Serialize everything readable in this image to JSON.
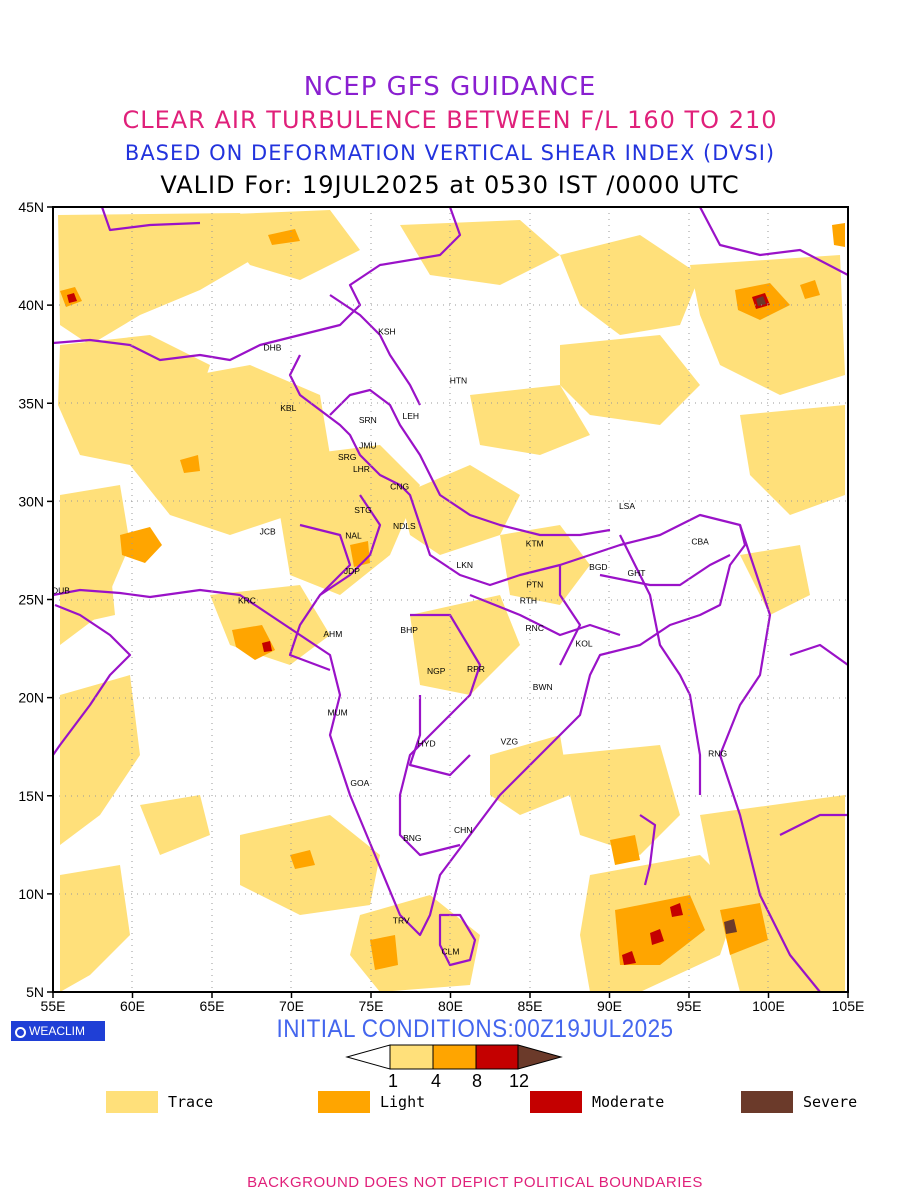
{
  "header": {
    "title": "NCEP GFS GUIDANCE",
    "subtitle": "CLEAR AIR TURBULENCE BETWEEN F/L 160 TO 210",
    "index_line": "BASED ON DEFORMATION VERTICAL SHEAR INDEX (DVSI)",
    "valid_line": "VALID For: 19JUL2025 at 0530 IST /0000 UTC"
  },
  "map": {
    "lat_labels": [
      "45N",
      "40N",
      "35N",
      "30N",
      "25N",
      "20N",
      "15N",
      "10N",
      "5N"
    ],
    "lon_labels": [
      "55E",
      "60E",
      "65E",
      "70E",
      "75E",
      "80E",
      "85E",
      "90E",
      "95E",
      "100E",
      "105E"
    ],
    "lat_range": [
      5,
      45
    ],
    "lon_range": [
      55,
      105
    ],
    "stations": [
      {
        "code": "KSH",
        "lon": 76.0,
        "lat": 38.5
      },
      {
        "code": "HTN",
        "lon": 80.5,
        "lat": 36.0
      },
      {
        "code": "DHB",
        "lon": 68.8,
        "lat": 37.7
      },
      {
        "code": "KBL",
        "lon": 69.8,
        "lat": 34.6
      },
      {
        "code": "SRN",
        "lon": 74.8,
        "lat": 34.0
      },
      {
        "code": "LEH",
        "lon": 77.5,
        "lat": 34.2
      },
      {
        "code": "JMU",
        "lon": 74.8,
        "lat": 32.7
      },
      {
        "code": "SRG",
        "lon": 73.5,
        "lat": 32.1
      },
      {
        "code": "LHR",
        "lon": 74.4,
        "lat": 31.5
      },
      {
        "code": "CNG",
        "lon": 76.8,
        "lat": 30.6
      },
      {
        "code": "STG",
        "lon": 74.5,
        "lat": 29.4
      },
      {
        "code": "NDLS",
        "lon": 77.1,
        "lat": 28.6
      },
      {
        "code": "JCB",
        "lon": 68.5,
        "lat": 28.3
      },
      {
        "code": "NAL",
        "lon": 73.9,
        "lat": 28.1
      },
      {
        "code": "JDP",
        "lon": 73.8,
        "lat": 26.3
      },
      {
        "code": "LKN",
        "lon": 80.9,
        "lat": 26.6
      },
      {
        "code": "LSA",
        "lon": 91.1,
        "lat": 29.6
      },
      {
        "code": "KTM",
        "lon": 85.3,
        "lat": 27.7
      },
      {
        "code": "CBA",
        "lon": 95.7,
        "lat": 27.8
      },
      {
        "code": "BGD",
        "lon": 89.3,
        "lat": 26.5
      },
      {
        "code": "GHT",
        "lon": 91.7,
        "lat": 26.2
      },
      {
        "code": "PTN",
        "lon": 85.3,
        "lat": 25.6
      },
      {
        "code": "DUB",
        "lon": 55.5,
        "lat": 25.3
      },
      {
        "code": "KRC",
        "lon": 67.2,
        "lat": 24.8
      },
      {
        "code": "RTH",
        "lon": 84.9,
        "lat": 24.8
      },
      {
        "code": "AHM",
        "lon": 72.6,
        "lat": 23.1
      },
      {
        "code": "BHP",
        "lon": 77.4,
        "lat": 23.3
      },
      {
        "code": "RNC",
        "lon": 85.3,
        "lat": 23.4
      },
      {
        "code": "KOL",
        "lon": 88.4,
        "lat": 22.6
      },
      {
        "code": "NGP",
        "lon": 79.1,
        "lat": 21.2
      },
      {
        "code": "RPR",
        "lon": 81.6,
        "lat": 21.3
      },
      {
        "code": "BWN",
        "lon": 85.8,
        "lat": 20.4
      },
      {
        "code": "MUM",
        "lon": 72.9,
        "lat": 19.1
      },
      {
        "code": "HYD",
        "lon": 78.5,
        "lat": 17.5
      },
      {
        "code": "VZG",
        "lon": 83.7,
        "lat": 17.6
      },
      {
        "code": "RNG",
        "lon": 96.8,
        "lat": 17.0
      },
      {
        "code": "GOA",
        "lon": 74.3,
        "lat": 15.5
      },
      {
        "code": "CHN",
        "lon": 80.8,
        "lat": 13.1
      },
      {
        "code": "BNG",
        "lon": 77.6,
        "lat": 12.7
      },
      {
        "code": "TRV",
        "lon": 76.9,
        "lat": 8.5
      },
      {
        "code": "CLM",
        "lon": 80.0,
        "lat": 6.9
      }
    ]
  },
  "branding": {
    "label": "WEACLIM"
  },
  "initial_conditions": "INITIAL CONDITIONS:00Z19JUL2025",
  "colorbar": {
    "ticks": [
      "1",
      "4",
      "8",
      "12"
    ],
    "colors": [
      "#ffffff",
      "#ffe07a",
      "#ffa500",
      "#c40000",
      "#6b3a2a"
    ]
  },
  "legend": [
    {
      "label": "Trace",
      "color": "#ffe07a"
    },
    {
      "label": "Light",
      "color": "#ffa500"
    },
    {
      "label": "Moderate",
      "color": "#c40000"
    },
    {
      "label": "Severe",
      "color": "#6b3a2a"
    }
  ],
  "footer": "BACKGROUND DOES NOT DEPICT POLITICAL BOUNDARIES"
}
